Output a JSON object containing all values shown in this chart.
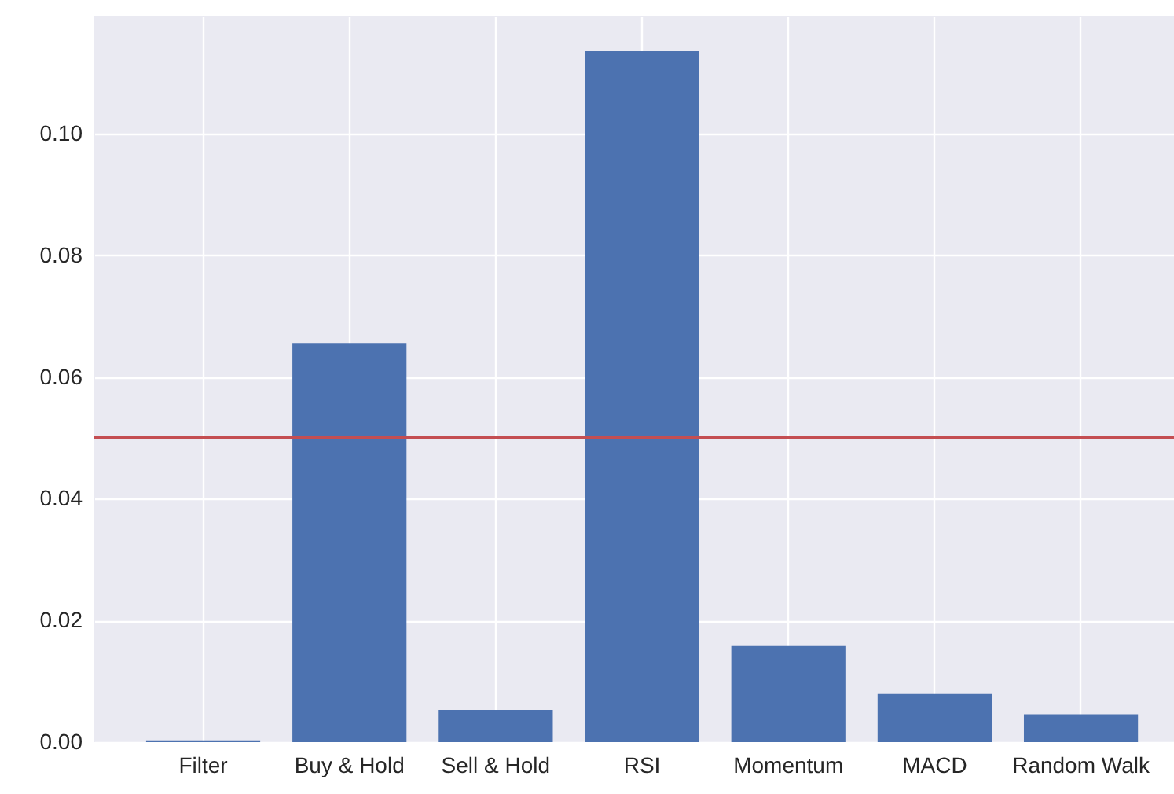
{
  "chart_data": {
    "type": "bar",
    "categories": [
      "Filter",
      "Buy & Hold",
      "Sell & Hold",
      "RSI",
      "Momentum",
      "MACD",
      "Random Walk"
    ],
    "values": [
      0.0003,
      0.0656,
      0.0053,
      0.1136,
      0.0158,
      0.0079,
      0.0046
    ],
    "color": "#4c72b0",
    "ylim": [
      0,
      0.1194
    ],
    "yticks": [
      {
        "value": 0,
        "label": "0.00"
      },
      {
        "value": 0.02,
        "label": "0.02"
      },
      {
        "value": 0.04,
        "label": "0.04"
      },
      {
        "value": 0.06,
        "label": "0.06"
      },
      {
        "value": 0.08,
        "label": "0.08"
      },
      {
        "value": 0.1,
        "label": "0.10"
      }
    ],
    "grid": true,
    "ref_lines": [
      {
        "axis": "y",
        "value": 0.05,
        "color": "#c44e52"
      }
    ]
  }
}
